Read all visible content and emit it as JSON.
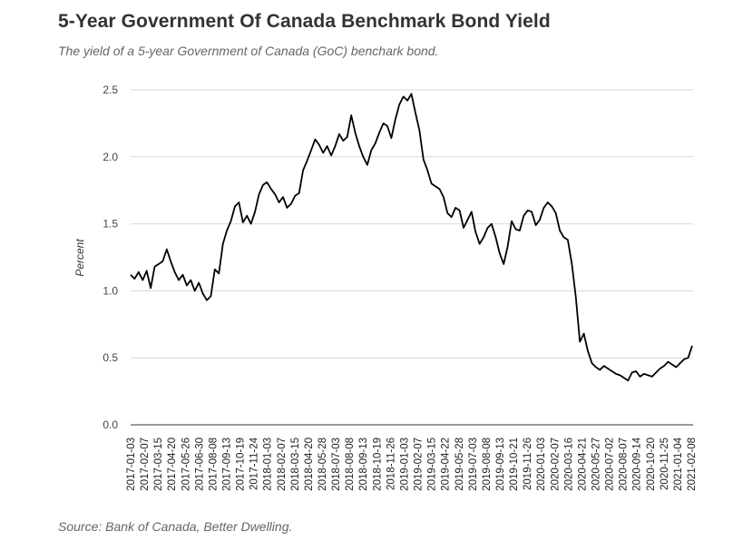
{
  "header": {
    "title": "5-Year Government Of Canada Benchmark Bond Yield",
    "subtitle": "The yield of a 5-year Government of Canada (GoC) benchark bond."
  },
  "footer": {
    "source": "Source: Bank of Canada, Better Dwelling."
  },
  "colors": {
    "line": "#000000",
    "grid": "#d9d9d9",
    "axis": "#333333"
  },
  "chart_data": {
    "type": "line",
    "title": "5-Year Government Of Canada Benchmark Bond Yield",
    "xlabel": "",
    "ylabel": "Percent",
    "ylim": [
      0,
      2.5
    ],
    "grid": true,
    "legend": "none",
    "y_ticks": [
      "0.0",
      "0.5",
      "1.0",
      "1.5",
      "2.0",
      "2.5"
    ],
    "x_ticks": [
      "2017-01-03",
      "2017-02-07",
      "2017-03-15",
      "2017-04-20",
      "2017-05-26",
      "2017-06-30",
      "2017-08-08",
      "2017-09-13",
      "2017-10-19",
      "2017-11-24",
      "2018-01-03",
      "2018-02-07",
      "2018-03-15",
      "2018-04-20",
      "2018-05-28",
      "2018-07-03",
      "2018-08-08",
      "2018-09-13",
      "2018-10-19",
      "2018-11-26",
      "2019-01-03",
      "2019-02-07",
      "2019-03-15",
      "2019-04-22",
      "2019-05-28",
      "2019-07-03",
      "2019-08-08",
      "2019-09-13",
      "2019-10-21",
      "2019-11-26",
      "2020-01-03",
      "2020-02-07",
      "2020-03-16",
      "2020-04-21",
      "2020-05-27",
      "2020-07-02",
      "2020-08-07",
      "2020-09-14",
      "2020-10-20",
      "2020-11-25",
      "2021-01-04",
      "2021-02-08"
    ],
    "series": [
      {
        "values": [
          [
            0,
            1.12
          ],
          [
            2,
            1.09
          ],
          [
            4,
            1.14
          ],
          [
            6,
            1.08
          ],
          [
            8,
            1.15
          ],
          [
            10,
            1.02
          ],
          [
            12,
            1.18
          ],
          [
            14,
            1.2
          ],
          [
            16,
            1.22
          ],
          [
            18,
            1.31
          ],
          [
            20,
            1.22
          ],
          [
            22,
            1.14
          ],
          [
            24,
            1.08
          ],
          [
            26,
            1.12
          ],
          [
            28,
            1.04
          ],
          [
            30,
            1.08
          ],
          [
            32,
            1.0
          ],
          [
            34,
            1.06
          ],
          [
            36,
            0.98
          ],
          [
            38,
            0.93
          ],
          [
            40,
            0.96
          ],
          [
            42,
            1.16
          ],
          [
            44,
            1.13
          ],
          [
            46,
            1.35
          ],
          [
            48,
            1.45
          ],
          [
            50,
            1.52
          ],
          [
            52,
            1.63
          ],
          [
            54,
            1.66
          ],
          [
            56,
            1.51
          ],
          [
            58,
            1.56
          ],
          [
            60,
            1.5
          ],
          [
            62,
            1.59
          ],
          [
            64,
            1.72
          ],
          [
            66,
            1.79
          ],
          [
            68,
            1.81
          ],
          [
            70,
            1.76
          ],
          [
            72,
            1.72
          ],
          [
            74,
            1.66
          ],
          [
            76,
            1.7
          ],
          [
            78,
            1.62
          ],
          [
            80,
            1.65
          ],
          [
            82,
            1.71
          ],
          [
            84,
            1.73
          ],
          [
            86,
            1.9
          ],
          [
            88,
            1.97
          ],
          [
            90,
            2.05
          ],
          [
            92,
            2.13
          ],
          [
            94,
            2.09
          ],
          [
            96,
            2.03
          ],
          [
            98,
            2.08
          ],
          [
            100,
            2.01
          ],
          [
            102,
            2.08
          ],
          [
            104,
            2.17
          ],
          [
            106,
            2.12
          ],
          [
            108,
            2.15
          ],
          [
            110,
            2.31
          ],
          [
            112,
            2.18
          ],
          [
            114,
            2.08
          ],
          [
            116,
            2.0
          ],
          [
            118,
            1.94
          ],
          [
            120,
            2.05
          ],
          [
            122,
            2.1
          ],
          [
            124,
            2.18
          ],
          [
            126,
            2.25
          ],
          [
            128,
            2.23
          ],
          [
            130,
            2.14
          ],
          [
            132,
            2.28
          ],
          [
            134,
            2.39
          ],
          [
            136,
            2.45
          ],
          [
            138,
            2.42
          ],
          [
            140,
            2.47
          ],
          [
            142,
            2.33
          ],
          [
            144,
            2.2
          ],
          [
            146,
            1.98
          ],
          [
            148,
            1.9
          ],
          [
            150,
            1.8
          ],
          [
            152,
            1.78
          ],
          [
            154,
            1.76
          ],
          [
            156,
            1.7
          ],
          [
            158,
            1.58
          ],
          [
            160,
            1.55
          ],
          [
            162,
            1.62
          ],
          [
            164,
            1.6
          ],
          [
            166,
            1.47
          ],
          [
            168,
            1.53
          ],
          [
            170,
            1.59
          ],
          [
            172,
            1.44
          ],
          [
            174,
            1.35
          ],
          [
            176,
            1.4
          ],
          [
            178,
            1.47
          ],
          [
            180,
            1.5
          ],
          [
            182,
            1.4
          ],
          [
            184,
            1.28
          ],
          [
            186,
            1.2
          ],
          [
            188,
            1.33
          ],
          [
            190,
            1.52
          ],
          [
            192,
            1.46
          ],
          [
            194,
            1.45
          ],
          [
            196,
            1.56
          ],
          [
            198,
            1.6
          ],
          [
            200,
            1.59
          ],
          [
            202,
            1.49
          ],
          [
            204,
            1.53
          ],
          [
            206,
            1.62
          ],
          [
            208,
            1.66
          ],
          [
            210,
            1.63
          ],
          [
            212,
            1.58
          ],
          [
            214,
            1.45
          ],
          [
            216,
            1.4
          ],
          [
            218,
            1.38
          ],
          [
            220,
            1.2
          ],
          [
            222,
            0.95
          ],
          [
            224,
            0.62
          ],
          [
            226,
            0.68
          ],
          [
            228,
            0.55
          ],
          [
            230,
            0.46
          ],
          [
            232,
            0.43
          ],
          [
            234,
            0.41
          ],
          [
            236,
            0.44
          ],
          [
            238,
            0.42
          ],
          [
            240,
            0.4
          ],
          [
            242,
            0.38
          ],
          [
            244,
            0.37
          ],
          [
            246,
            0.35
          ],
          [
            248,
            0.33
          ],
          [
            250,
            0.39
          ],
          [
            252,
            0.4
          ],
          [
            254,
            0.36
          ],
          [
            256,
            0.38
          ],
          [
            258,
            0.37
          ],
          [
            260,
            0.36
          ],
          [
            262,
            0.39
          ],
          [
            264,
            0.42
          ],
          [
            266,
            0.44
          ],
          [
            268,
            0.47
          ],
          [
            270,
            0.45
          ],
          [
            272,
            0.43
          ],
          [
            274,
            0.46
          ],
          [
            276,
            0.49
          ],
          [
            278,
            0.5
          ],
          [
            280,
            0.59
          ]
        ]
      }
    ]
  }
}
